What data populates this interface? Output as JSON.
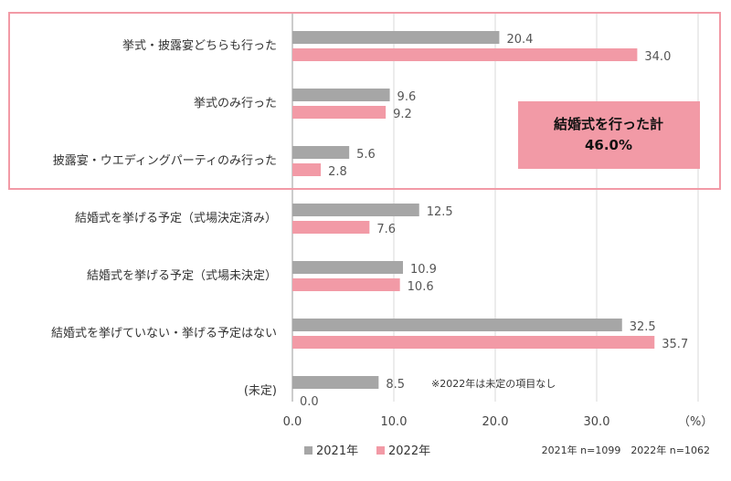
{
  "chart_data": {
    "type": "bar",
    "orientation": "horizontal",
    "categories": [
      "挙式・披露宴どちらも行った",
      "挙式のみ行った",
      "披露宴・ウエディングパーティのみ行った",
      "結婚式を挙げる予定（式場決定済み）",
      "結婚式を挙げる予定（式場未決定）",
      "結婚式を挙げていない・挙げる予定はない",
      "(未定)"
    ],
    "series": [
      {
        "name": "2021年",
        "color": "#a6a6a6",
        "values": [
          20.4,
          9.6,
          5.6,
          12.5,
          10.9,
          32.5,
          8.5
        ]
      },
      {
        "name": "2022年",
        "color": "#f29aa6",
        "values": [
          34.0,
          9.2,
          2.8,
          7.6,
          10.6,
          35.7,
          0.0
        ]
      }
    ],
    "value_labels": [
      [
        "20.4",
        "9.6",
        "5.6",
        "12.5",
        "10.9",
        "32.5",
        "8.5"
      ],
      [
        "34.0",
        "9.2",
        "2.8",
        "7.6",
        "10.6",
        "35.7",
        "0.0"
      ]
    ],
    "xlim": [
      0,
      40
    ],
    "xticks": [
      "0.0",
      "10.0",
      "20.0",
      "30.0"
    ],
    "x_unit": "（%）",
    "grid": true,
    "legend_position": "bottom-left",
    "highlight_categories": [
      0,
      1,
      2
    ],
    "highlight_border_color": "#f29aa6",
    "callout": {
      "line1": "結婚式を行った計",
      "line2": "46.0%",
      "fill": "#f29aa6"
    },
    "note": "※2022年は未定の項目なし",
    "sample_sizes": "2021年 n=1099　2022年 n=1062"
  }
}
